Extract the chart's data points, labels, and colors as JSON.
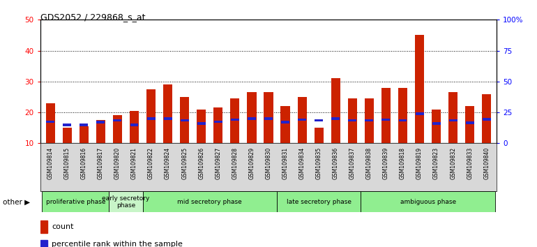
{
  "title": "GDS2052 / 229868_s_at",
  "samples": [
    "GSM109814",
    "GSM109815",
    "GSM109816",
    "GSM109817",
    "GSM109820",
    "GSM109821",
    "GSM109822",
    "GSM109824",
    "GSM109825",
    "GSM109826",
    "GSM109827",
    "GSM109828",
    "GSM109829",
    "GSM109830",
    "GSM109831",
    "GSM109834",
    "GSM109835",
    "GSM109836",
    "GSM109837",
    "GSM109838",
    "GSM109839",
    "GSM109818",
    "GSM109819",
    "GSM109823",
    "GSM109832",
    "GSM109833",
    "GSM109840"
  ],
  "count_values": [
    23.0,
    15.0,
    15.5,
    17.5,
    19.0,
    20.5,
    27.5,
    29.0,
    25.0,
    21.0,
    21.5,
    24.5,
    26.5,
    26.5,
    22.0,
    25.0,
    15.0,
    31.0,
    24.5,
    24.5,
    28.0,
    28.0,
    45.0,
    21.0,
    26.5,
    22.0,
    26.0
  ],
  "percentile_values": [
    17.5,
    15.0,
    15.0,
    17.0,
    18.5,
    15.0,
    20.0,
    20.0,
    18.5,
    16.0,
    17.5,
    19.0,
    20.0,
    20.0,
    17.0,
    19.0,
    18.5,
    20.0,
    18.5,
    18.5,
    19.0,
    18.5,
    24.0,
    16.0,
    18.5,
    16.5,
    19.5
  ],
  "phases": [
    {
      "label": "proliferative phase",
      "start": 0,
      "end": 4
    },
    {
      "label": "early secretory\nphase",
      "start": 4,
      "end": 6
    },
    {
      "label": "mid secretory phase",
      "start": 6,
      "end": 14
    },
    {
      "label": "late secretory phase",
      "start": 14,
      "end": 19
    },
    {
      "label": "ambiguous phase",
      "start": 19,
      "end": 27
    }
  ],
  "phase_colors": [
    "#90EE90",
    "#c8f5c8",
    "#90EE90",
    "#90EE90",
    "#90EE90"
  ],
  "ylim_left": [
    10,
    50
  ],
  "ylim_right": [
    0,
    100
  ],
  "right_ticks": [
    0,
    25,
    50,
    75,
    100
  ],
  "right_tick_labels": [
    "0",
    "25",
    "50",
    "75",
    "100%"
  ],
  "left_ticks": [
    10,
    20,
    30,
    40,
    50
  ],
  "bar_color": "#cc2200",
  "percentile_color": "#2222cc",
  "plot_bg": "#ffffff",
  "xtick_bg": "#d8d8d8"
}
